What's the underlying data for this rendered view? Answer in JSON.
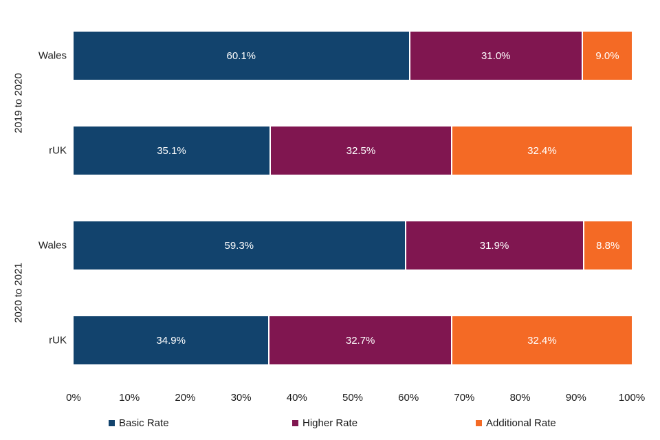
{
  "chart_data": {
    "type": "bar",
    "orientation": "horizontal",
    "stacked": true,
    "title": "",
    "xlabel": "",
    "ylabel": "",
    "x_axis": {
      "min": 0,
      "max": 100,
      "tick_labels": [
        "0%",
        "10%",
        "20%",
        "30%",
        "40%",
        "50%",
        "60%",
        "70%",
        "80%",
        "90%",
        "100%"
      ],
      "grid": false
    },
    "series": [
      {
        "name": "Basic Rate",
        "color": "#12436D"
      },
      {
        "name": "Higher Rate",
        "color": "#801650"
      },
      {
        "name": "Additional Rate",
        "color": "#F46A25"
      }
    ],
    "legend_position": "bottom",
    "groups": [
      {
        "label": "2019 to 2020",
        "rows": [
          {
            "category": "Wales",
            "values": [
              60.1,
              31.0,
              9.0
            ],
            "value_labels": [
              "60.1%",
              "31.0%",
              "9.0%"
            ]
          },
          {
            "category": "rUK",
            "values": [
              35.1,
              32.5,
              32.4
            ],
            "value_labels": [
              "35.1%",
              "32.5%",
              "32.4%"
            ]
          }
        ]
      },
      {
        "label": "2020 to 2021",
        "rows": [
          {
            "category": "Wales",
            "values": [
              59.3,
              31.9,
              8.8
            ],
            "value_labels": [
              "59.3%",
              "31.9%",
              "8.8%"
            ]
          },
          {
            "category": "rUK",
            "values": [
              34.9,
              32.7,
              32.4
            ],
            "value_labels": [
              "34.9%",
              "32.7%",
              "32.4%"
            ]
          }
        ]
      }
    ]
  }
}
